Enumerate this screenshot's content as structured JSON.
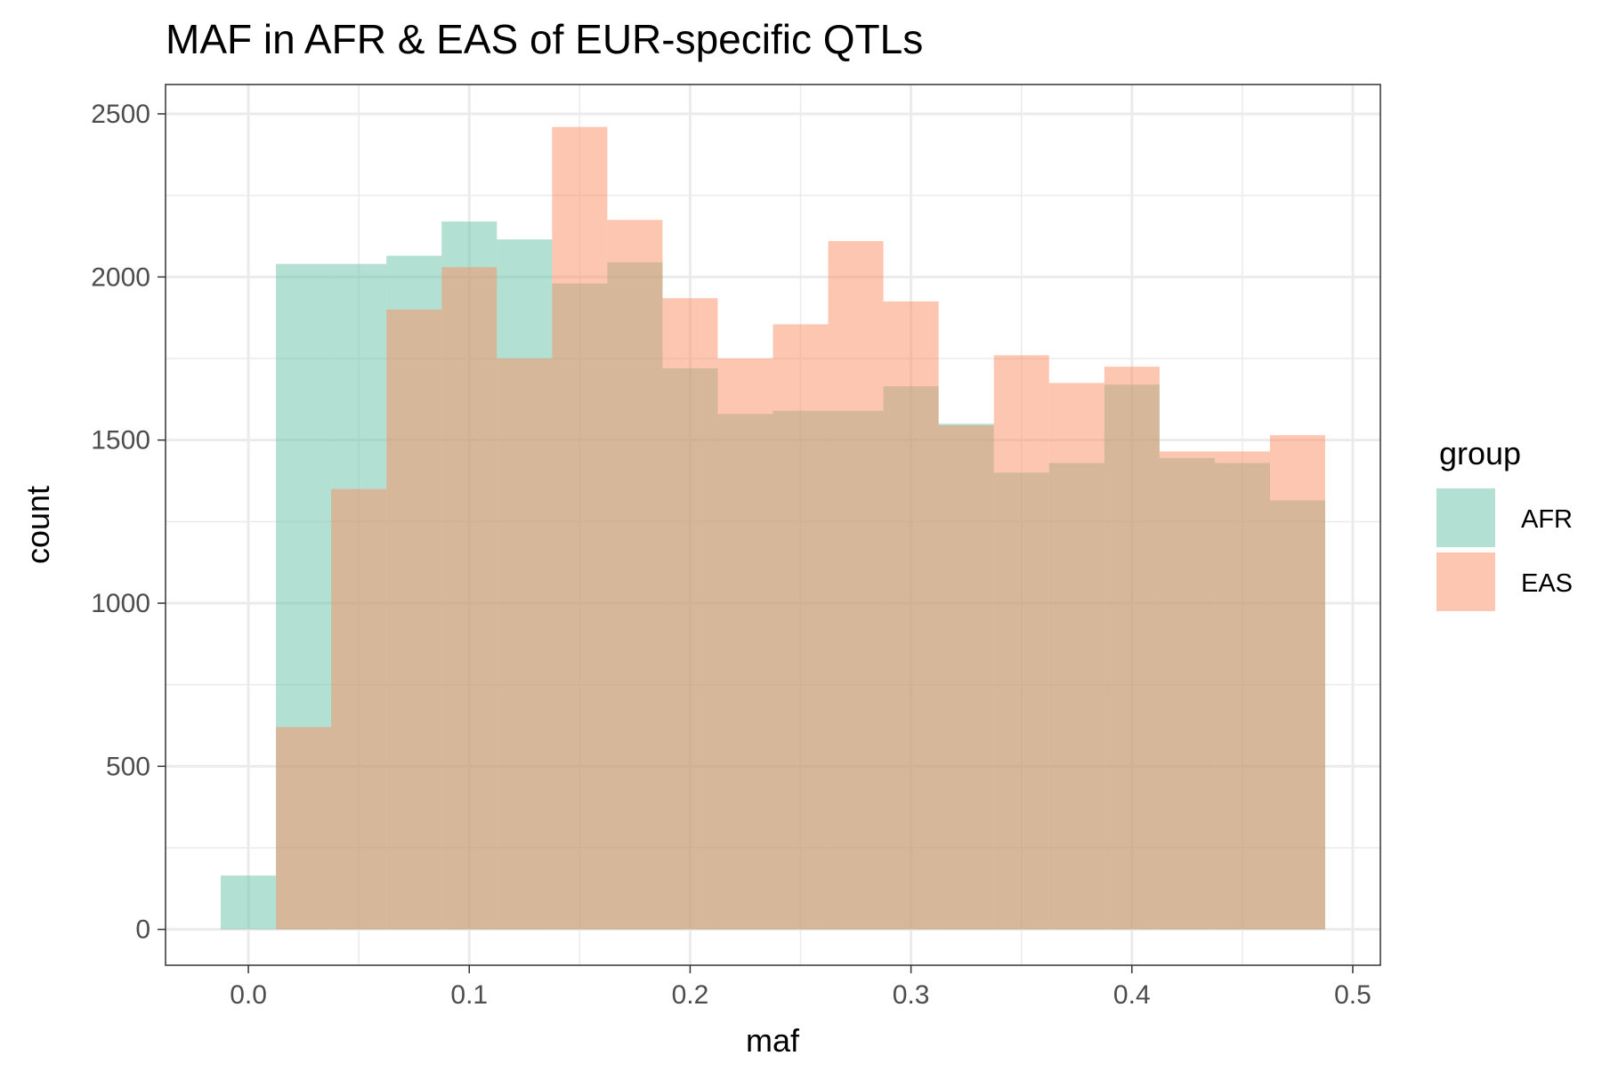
{
  "chart_data": {
    "type": "bar",
    "subtype": "overlapping-histogram",
    "title": "MAF in AFR & EAS of EUR-specific QTLs",
    "xlabel": "maf",
    "ylabel": "count",
    "xlim": [
      -0.0375,
      0.5125
    ],
    "ylim": [
      -110,
      2590
    ],
    "x_ticks": [
      0.0,
      0.1,
      0.2,
      0.3,
      0.4,
      0.5
    ],
    "x_tick_labels": [
      "0.0",
      "0.1",
      "0.2",
      "0.3",
      "0.4",
      "0.5"
    ],
    "y_ticks": [
      0,
      500,
      1000,
      1500,
      2000,
      2500
    ],
    "y_tick_labels": [
      "0",
      "500",
      "1000",
      "1500",
      "2000",
      "2500"
    ],
    "grid": true,
    "legend_title": "group",
    "legend_position": "right",
    "bin_edges": [
      -0.0125,
      0.0125,
      0.0375,
      0.0625,
      0.0875,
      0.1125,
      0.1375,
      0.1625,
      0.1875,
      0.2125,
      0.2375,
      0.2625,
      0.2875,
      0.3125,
      0.3375,
      0.3625,
      0.3875,
      0.4125,
      0.4375,
      0.4625,
      0.4875,
      0.5125
    ],
    "series": [
      {
        "name": "AFR",
        "color": "#66c2a5",
        "values": [
          165,
          2040,
          2040,
          2065,
          2170,
          2115,
          1980,
          2045,
          1720,
          1580,
          1590,
          1590,
          1665,
          1550,
          1400,
          1430,
          1670,
          1445,
          1430,
          1315,
          0
        ]
      },
      {
        "name": "EAS",
        "color": "#fc8d62",
        "values": [
          0,
          620,
          1350,
          1900,
          2030,
          1750,
          2460,
          2175,
          1935,
          1750,
          1855,
          2110,
          1925,
          1545,
          1760,
          1675,
          1725,
          1465,
          1465,
          1515,
          0
        ]
      }
    ]
  }
}
